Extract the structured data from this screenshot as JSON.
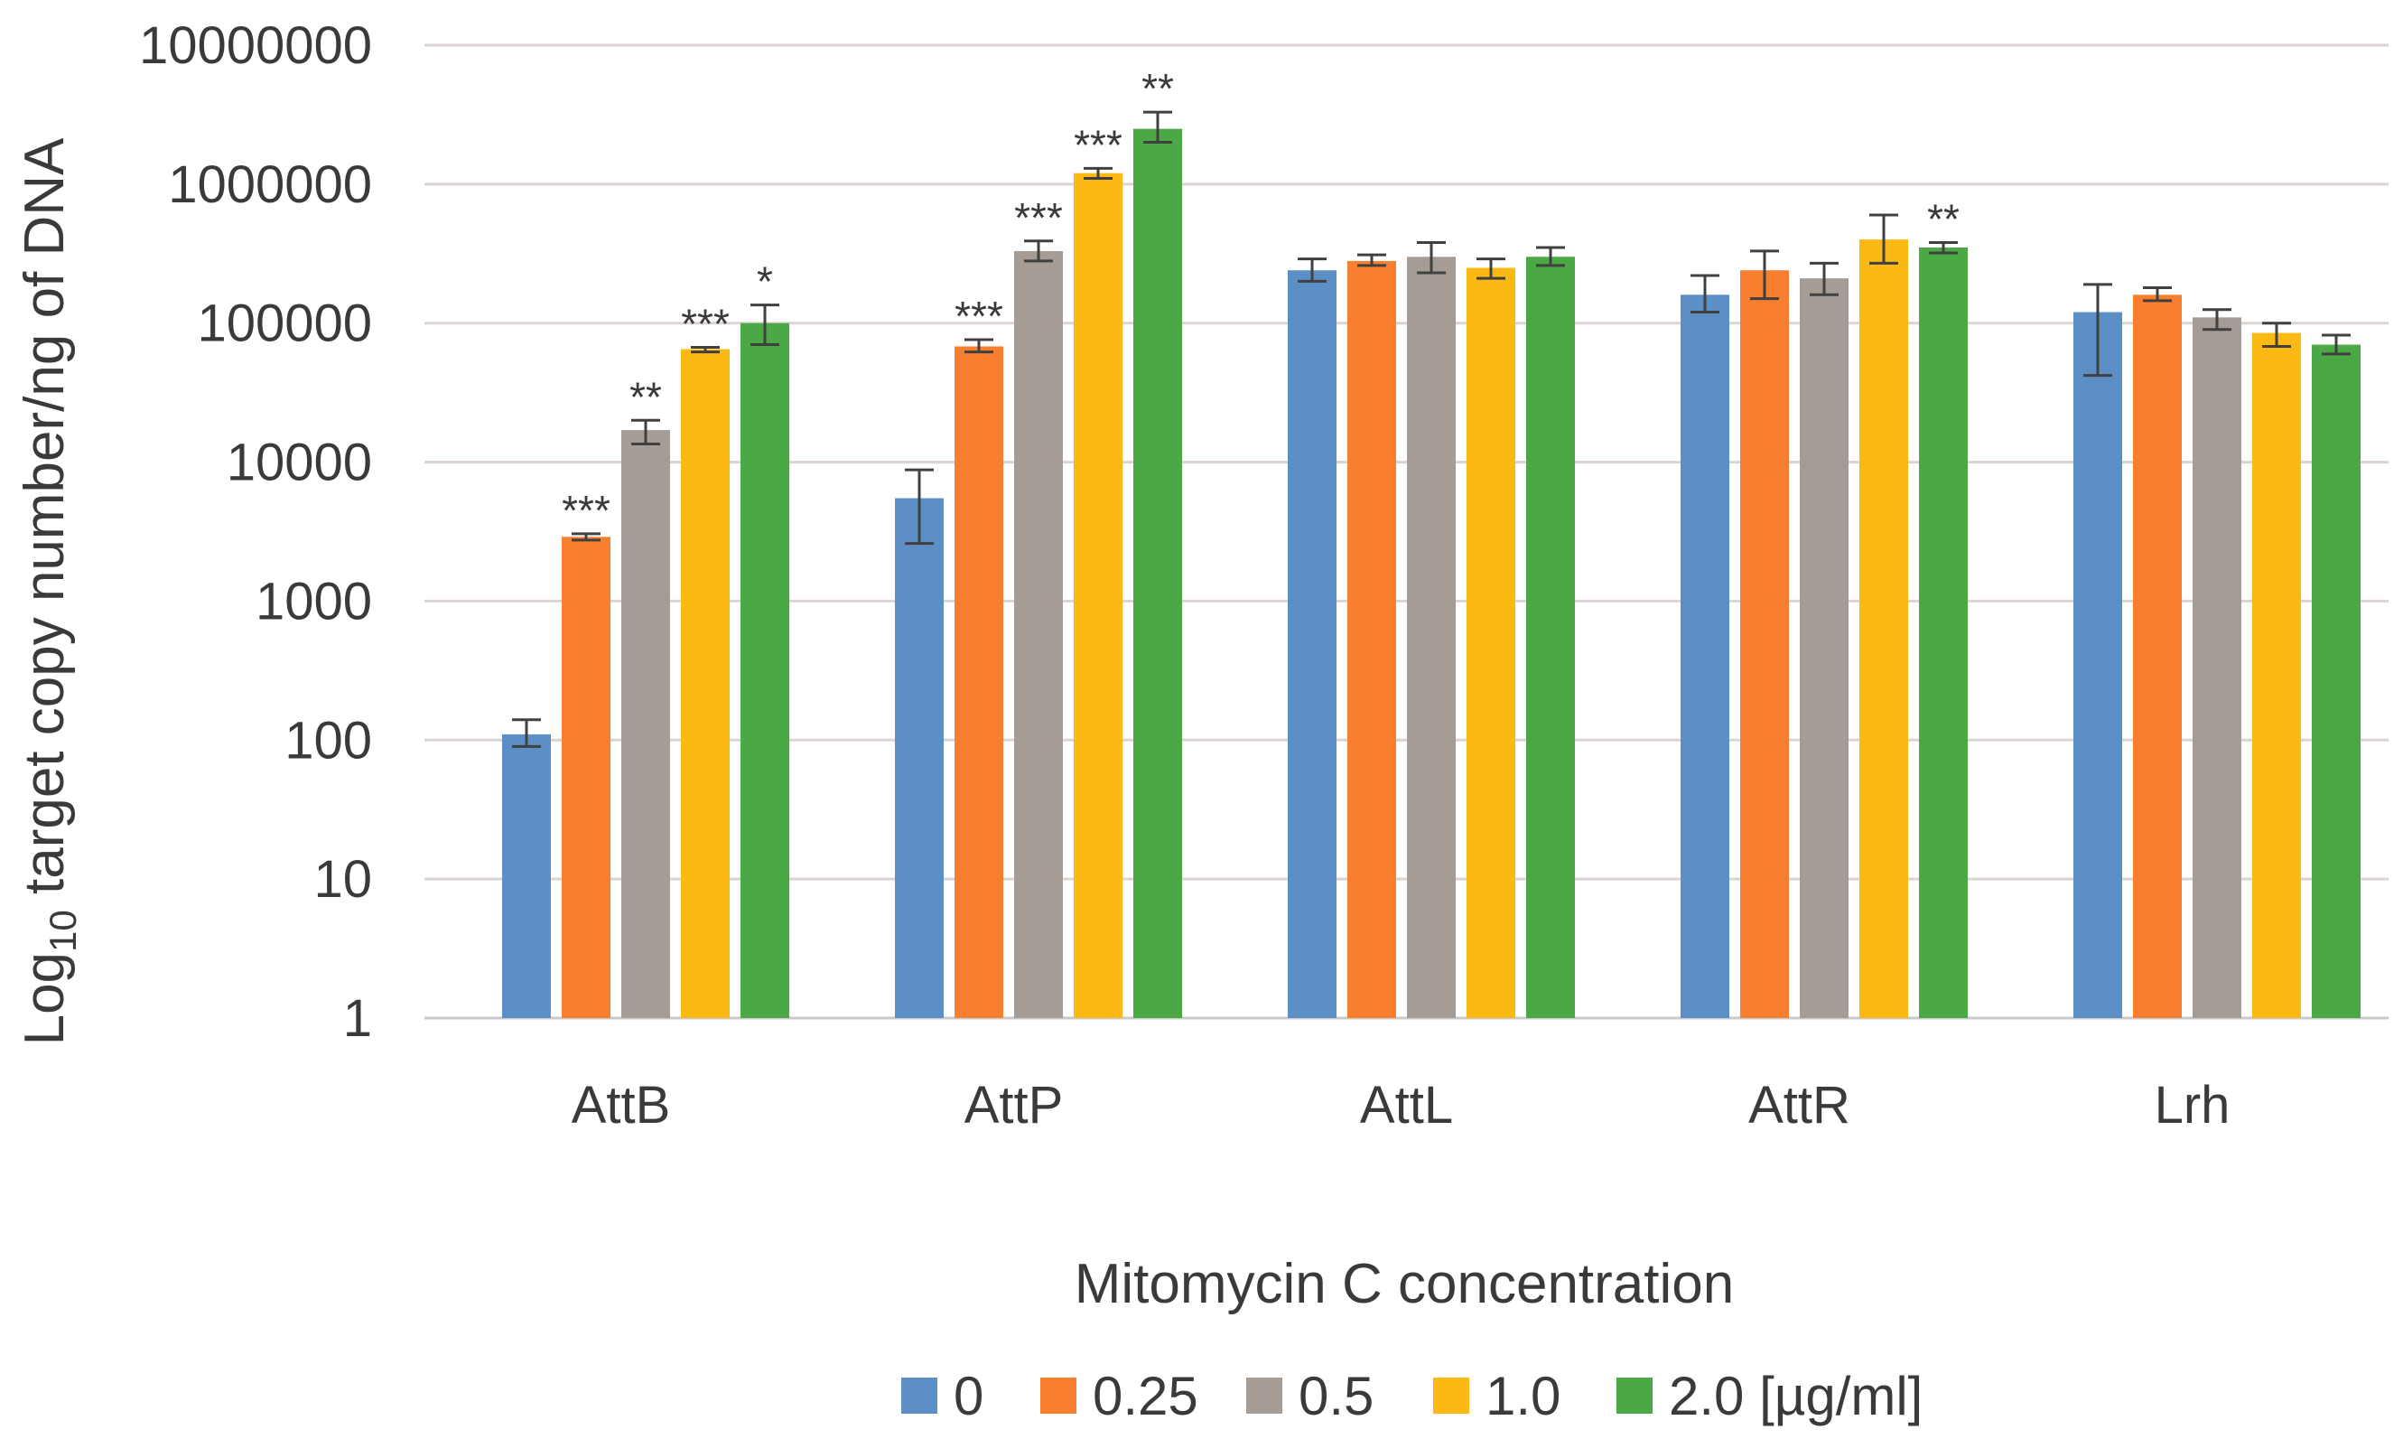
{
  "chart_data": {
    "type": "bar",
    "title": "",
    "xlabel": "Mitomycin C concentration",
    "ylabel": {
      "prefix": "Log",
      "subscript": "10",
      "suffix": " target copy number/ng of DNA"
    },
    "yscale": "log",
    "ylim": [
      1,
      10000000
    ],
    "yticks": [
      {
        "value": 1,
        "label": "1"
      },
      {
        "value": 10,
        "label": "10"
      },
      {
        "value": 100,
        "label": "100"
      },
      {
        "value": 1000,
        "label": "1000"
      },
      {
        "value": 10000,
        "label": "10000"
      },
      {
        "value": 100000,
        "label": "100000"
      },
      {
        "value": 1000000,
        "label": "1000000"
      },
      {
        "value": 10000000,
        "label": "10000000"
      }
    ],
    "grid": true,
    "legend_position": "bottom",
    "categories": [
      "AttB",
      "AttP",
      "AttL",
      "AttR",
      "Lrh"
    ],
    "series": [
      {
        "name": "0",
        "color": "#5b8fc5",
        "values": [
          110,
          5500,
          240000,
          160000,
          120000
        ],
        "err_low": [
          90,
          2600,
          200000,
          120000,
          42000
        ],
        "err_high": [
          140,
          8800,
          290000,
          220000,
          190000
        ],
        "stars": [
          "",
          "",
          "",
          "",
          ""
        ]
      },
      {
        "name": "0.25",
        "color": "#f77f2f",
        "values": [
          2900,
          68000,
          280000,
          240000,
          160000
        ],
        "err_low": [
          2750,
          62000,
          260000,
          150000,
          145000
        ],
        "err_high": [
          3050,
          76000,
          310000,
          330000,
          180000
        ],
        "stars": [
          "***",
          "***",
          "",
          "",
          ""
        ]
      },
      {
        "name": "0.5",
        "color": "#a59d95",
        "values": [
          17000,
          330000,
          300000,
          210000,
          110000
        ],
        "err_low": [
          13500,
          280000,
          230000,
          160000,
          90000
        ],
        "err_high": [
          20000,
          390000,
          380000,
          270000,
          125000
        ],
        "stars": [
          "**",
          "***",
          "",
          "",
          ""
        ]
      },
      {
        "name": "1.0",
        "color": "#fdb913",
        "values": [
          65000,
          1200000,
          250000,
          400000,
          85000
        ],
        "err_low": [
          62000,
          1100000,
          210000,
          270000,
          68000
        ],
        "err_high": [
          67000,
          1300000,
          290000,
          600000,
          100000
        ],
        "stars": [
          "***",
          "***",
          "",
          "",
          ""
        ]
      },
      {
        "name": "2.0 [µg/ml]",
        "color": "#4aa845",
        "values": [
          100000,
          2500000,
          300000,
          350000,
          70000
        ],
        "err_low": [
          70000,
          2000000,
          260000,
          320000,
          60000
        ],
        "err_high": [
          135000,
          3300000,
          350000,
          380000,
          82000
        ],
        "stars": [
          "*",
          "**",
          "",
          "**",
          ""
        ]
      }
    ]
  }
}
